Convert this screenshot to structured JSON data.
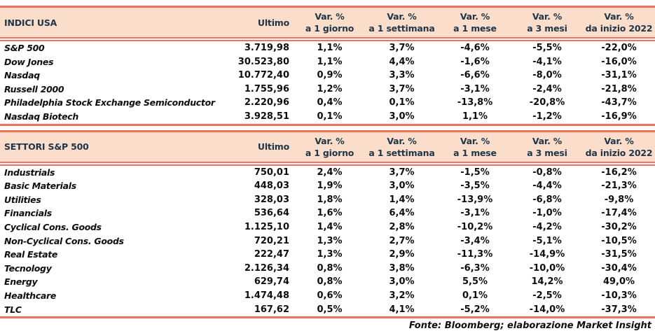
{
  "colors": {
    "header_background": "#FBDDCB",
    "rule_line": "#ED7360",
    "header_text": "#1E3547",
    "body_text": "#0E0E0E"
  },
  "columns": {
    "ultimo_label": "Ultimo",
    "var_label": "Var. %",
    "sub_labels": [
      "a 1 giorno",
      "a 1 settimana",
      "a 1 mese",
      "a 3 mesi",
      "da inizio 2022"
    ]
  },
  "sections": [
    {
      "title": "INDICI USA",
      "rows": [
        {
          "name": "S&P 500",
          "ultimo": "3.719,98",
          "vars": [
            "1,1%",
            "3,7%",
            "-4,6%",
            "-5,5%",
            "-22,0%"
          ]
        },
        {
          "name": "Dow Jones",
          "ultimo": "30.523,80",
          "vars": [
            "1,1%",
            "4,4%",
            "-1,6%",
            "-4,1%",
            "-16,0%"
          ]
        },
        {
          "name": "Nasdaq",
          "ultimo": "10.772,40",
          "vars": [
            "0,9%",
            "3,3%",
            "-6,6%",
            "-8,0%",
            "-31,1%"
          ]
        },
        {
          "name": "Russell 2000",
          "ultimo": "1.755,96",
          "vars": [
            "1,2%",
            "3,7%",
            "-3,1%",
            "-2,4%",
            "-21,8%"
          ]
        },
        {
          "name": "Philadelphia Stock Exchange Semiconductor",
          "ultimo": "2.220,96",
          "vars": [
            "0,4%",
            "0,1%",
            "-13,8%",
            "-20,8%",
            "-43,7%"
          ]
        },
        {
          "name": "Nasdaq Biotech",
          "ultimo": "3.928,51",
          "vars": [
            "0,1%",
            "3,0%",
            "1,1%",
            "-1,2%",
            "-16,9%"
          ]
        }
      ]
    },
    {
      "title": "SETTORI S&P 500",
      "rows": [
        {
          "name": "Industrials",
          "ultimo": "750,01",
          "vars": [
            "2,4%",
            "3,7%",
            "-1,5%",
            "-0,8%",
            "-16,2%"
          ]
        },
        {
          "name": "Basic Materials",
          "ultimo": "448,03",
          "vars": [
            "1,9%",
            "3,0%",
            "-3,5%",
            "-4,4%",
            "-21,3%"
          ]
        },
        {
          "name": "Utilities",
          "ultimo": "328,03",
          "vars": [
            "1,8%",
            "1,4%",
            "-13,9%",
            "-6,8%",
            "-9,8%"
          ]
        },
        {
          "name": "Financials",
          "ultimo": "536,64",
          "vars": [
            "1,6%",
            "6,4%",
            "-3,1%",
            "-1,0%",
            "-17,4%"
          ]
        },
        {
          "name": "Cyclical Cons. Goods",
          "ultimo": "1.125,10",
          "vars": [
            "1,4%",
            "2,8%",
            "-10,2%",
            "-4,2%",
            "-30,2%"
          ]
        },
        {
          "name": "Non-Cyclical Cons. Goods",
          "ultimo": "720,21",
          "vars": [
            "1,3%",
            "2,7%",
            "-3,4%",
            "-5,1%",
            "-10,5%"
          ]
        },
        {
          "name": "Real Estate",
          "ultimo": "222,47",
          "vars": [
            "1,3%",
            "2,9%",
            "-11,3%",
            "-14,9%",
            "-31,5%"
          ]
        },
        {
          "name": "Tecnology",
          "ultimo": "2.126,34",
          "vars": [
            "0,8%",
            "3,8%",
            "-6,3%",
            "-10,0%",
            "-30,4%"
          ]
        },
        {
          "name": "Energy",
          "ultimo": "629,74",
          "vars": [
            "0,8%",
            "3,0%",
            "5,5%",
            "14,2%",
            "49,0%"
          ]
        },
        {
          "name": "Healthcare",
          "ultimo": "1.474,48",
          "vars": [
            "0,6%",
            "3,2%",
            "0,1%",
            "-2,5%",
            "-10,3%"
          ]
        },
        {
          "name": "TLC",
          "ultimo": "167,62",
          "vars": [
            "0,5%",
            "4,1%",
            "-5,2%",
            "-14,0%",
            "-37,3%"
          ]
        }
      ]
    }
  ],
  "footer": "Fonte: Bloomberg; elaborazione Market Insight"
}
